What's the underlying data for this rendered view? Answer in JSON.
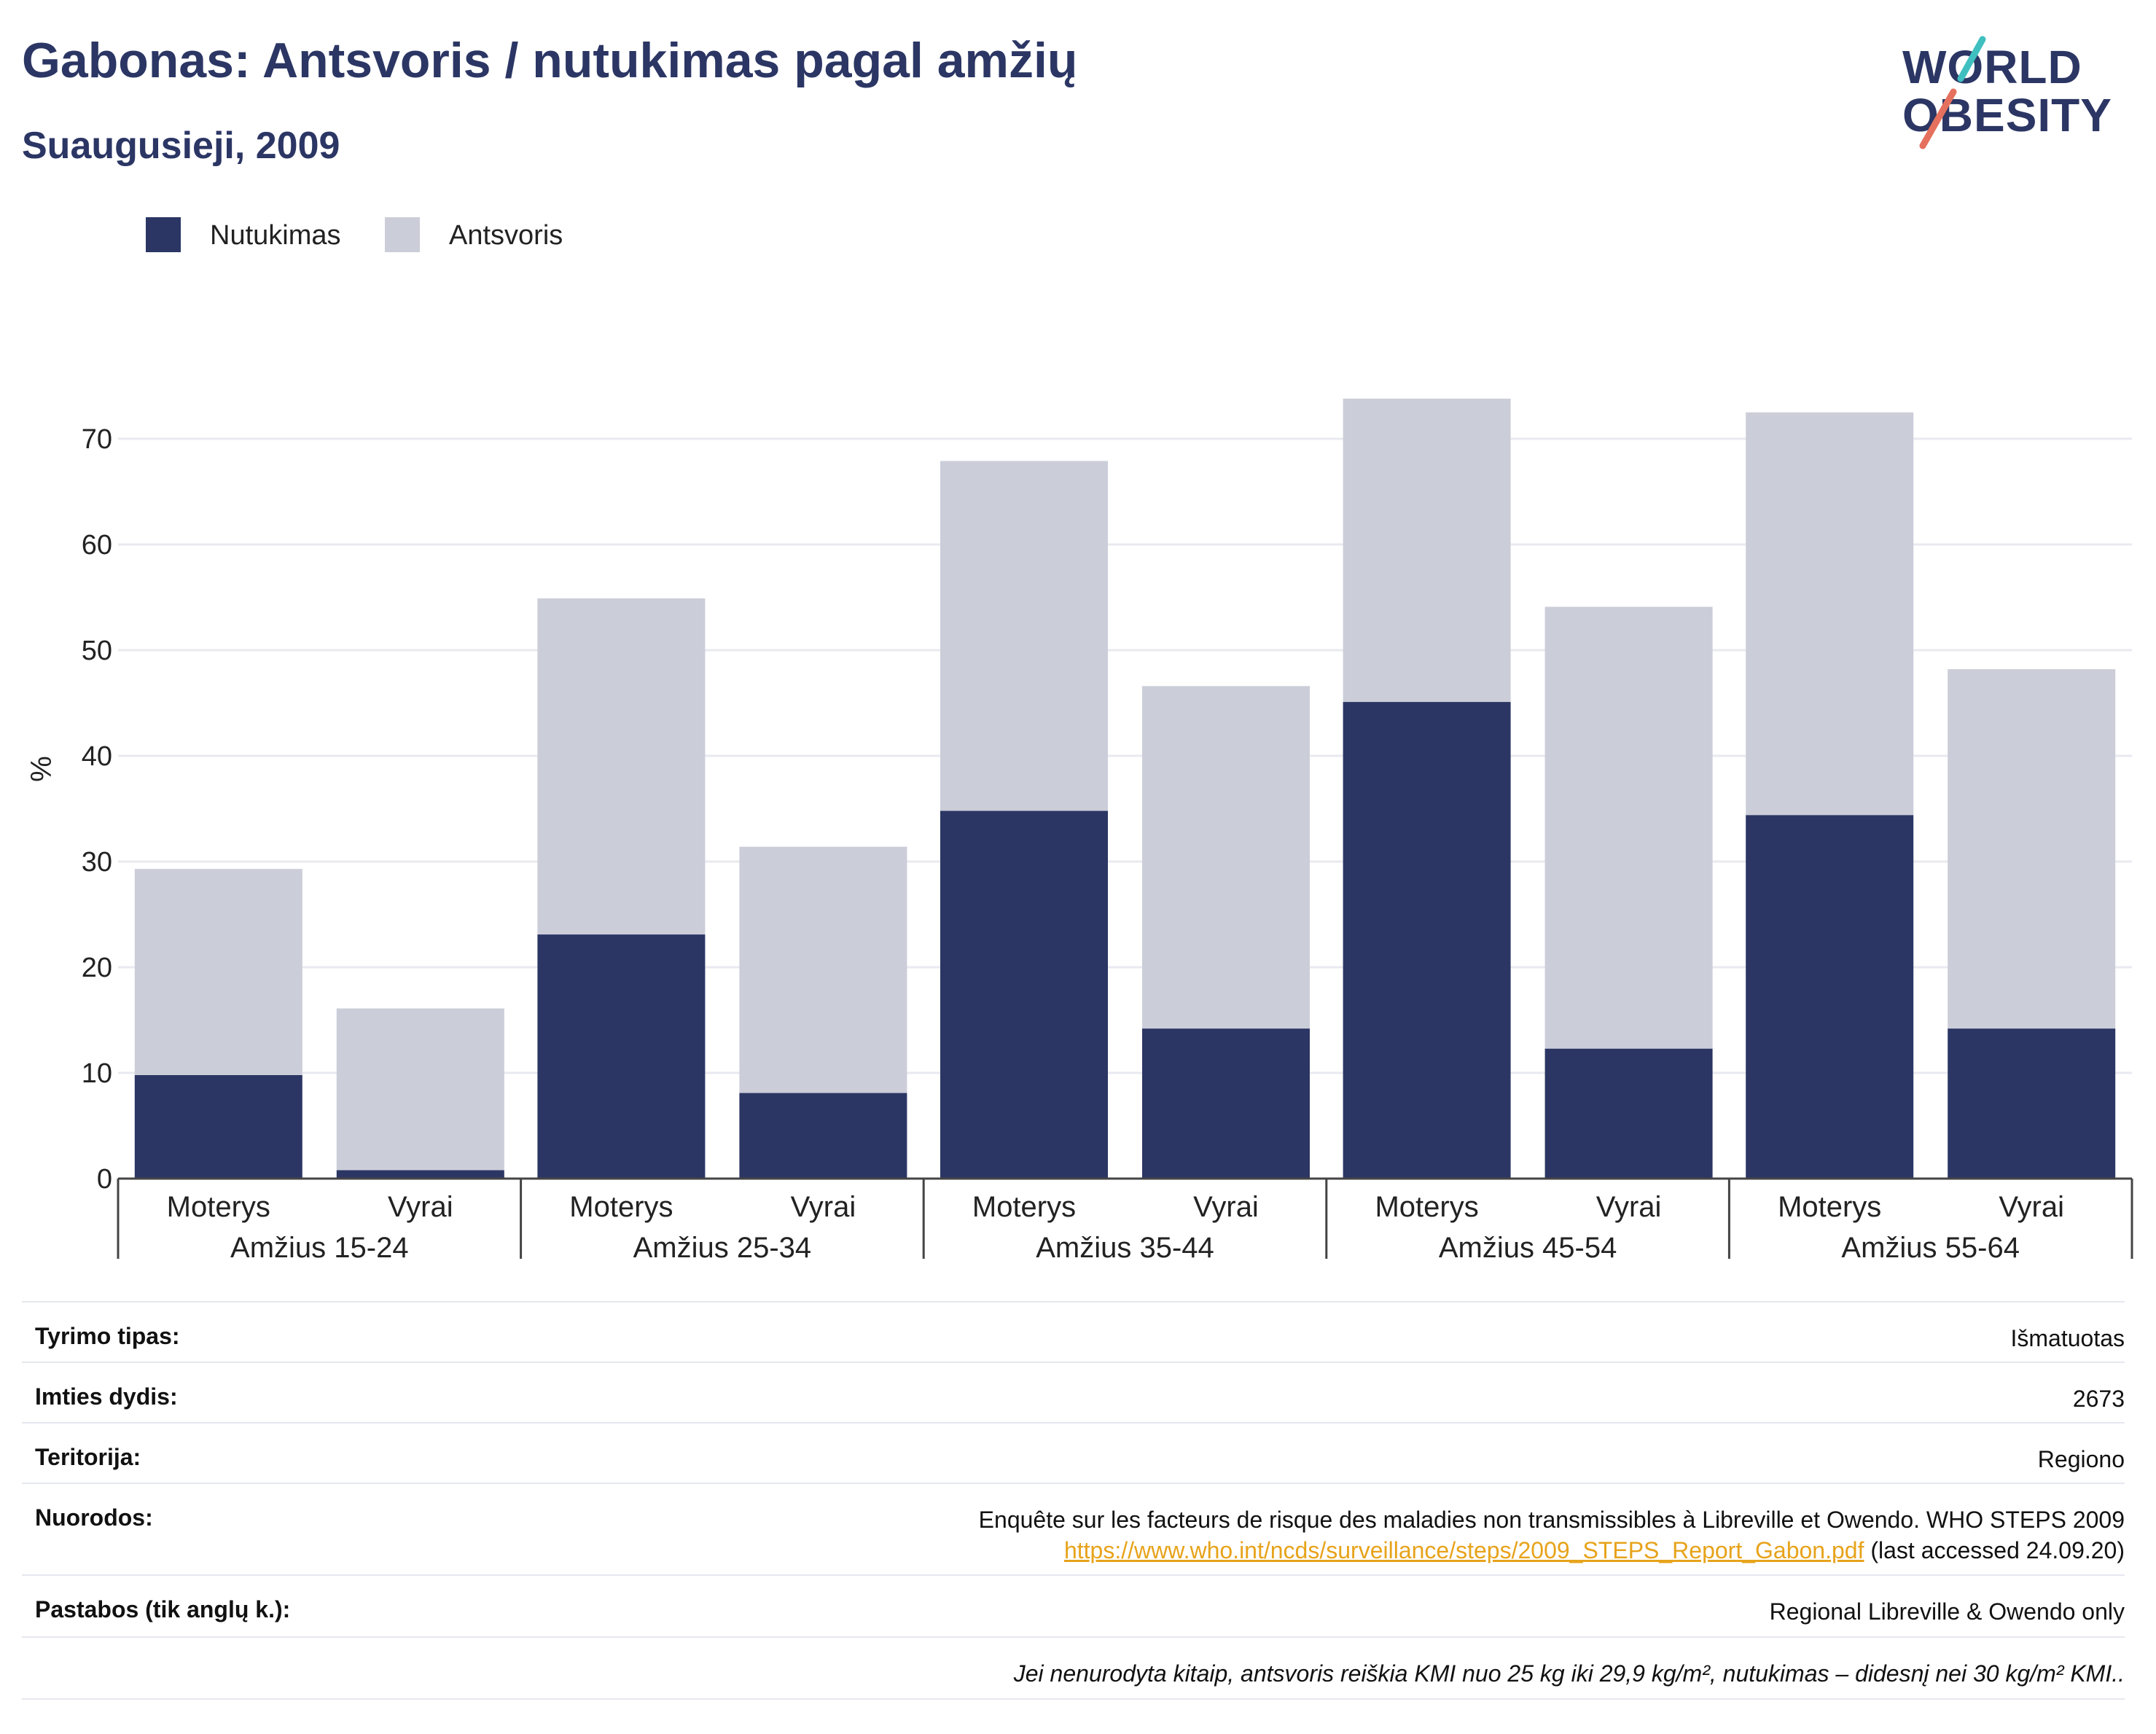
{
  "header": {
    "title": "Gabonas: Antsvoris / nutukimas pagal amžių",
    "subtitle": "Suaugusieji, 2009",
    "logo_line1": "WORLD",
    "logo_line2": "OBESITY"
  },
  "legend": {
    "items": [
      {
        "label": "Nutukimas",
        "color": "#2b3664"
      },
      {
        "label": "Antsvoris",
        "color": "#cbcdd9"
      }
    ]
  },
  "chart_data": {
    "type": "bar",
    "stacked": true,
    "ylabel": "%",
    "ylim": [
      0,
      80
    ],
    "yticks": [
      0,
      10,
      20,
      30,
      40,
      50,
      60,
      70
    ],
    "grid": true,
    "legend_position": "top-left",
    "groups": [
      "Amžius 15-24",
      "Amžius 25-34",
      "Amžius 35-44",
      "Amžius 45-54",
      "Amžius 55-64"
    ],
    "subcategories": [
      "Moterys",
      "Vyrai"
    ],
    "series": [
      {
        "name": "Nutukimas",
        "color": "#2b3664",
        "values": [
          9.8,
          0.8,
          23.1,
          8.1,
          34.8,
          14.2,
          45.1,
          12.3,
          34.4,
          14.2
        ]
      },
      {
        "name": "Antsvoris",
        "color": "#cbcdd9",
        "values": [
          19.5,
          15.3,
          31.8,
          23.3,
          33.1,
          32.4,
          28.7,
          41.8,
          38.1,
          34.0
        ]
      }
    ]
  },
  "info": {
    "rows": [
      {
        "label": "Tyrimo tipas:",
        "value": "Išmatuotas"
      },
      {
        "label": "Imties dydis:",
        "value": "2673"
      },
      {
        "label": "Teritorija:",
        "value": "Regiono"
      },
      {
        "label": "Nuorodos:",
        "value": "Enquête sur les facteurs de risque des maladies non transmissibles à Libreville et Owendo. WHO STEPS 2009",
        "link": "https://www.who.int/ncds/surveillance/steps/2009_STEPS_Report_Gabon.pdf",
        "suffix": " (last accessed 24.09.20)"
      },
      {
        "label": "Pastabos (tik anglų k.):",
        "value": "Regional Libreville & Owendo only"
      }
    ],
    "footnote": "Jei nenurodyta kitaip, antsvoris reiškia KMI nuo 25 kg iki 29,9 kg/m², nutukimas – didesnį nei 30 kg/m² KMI.."
  }
}
